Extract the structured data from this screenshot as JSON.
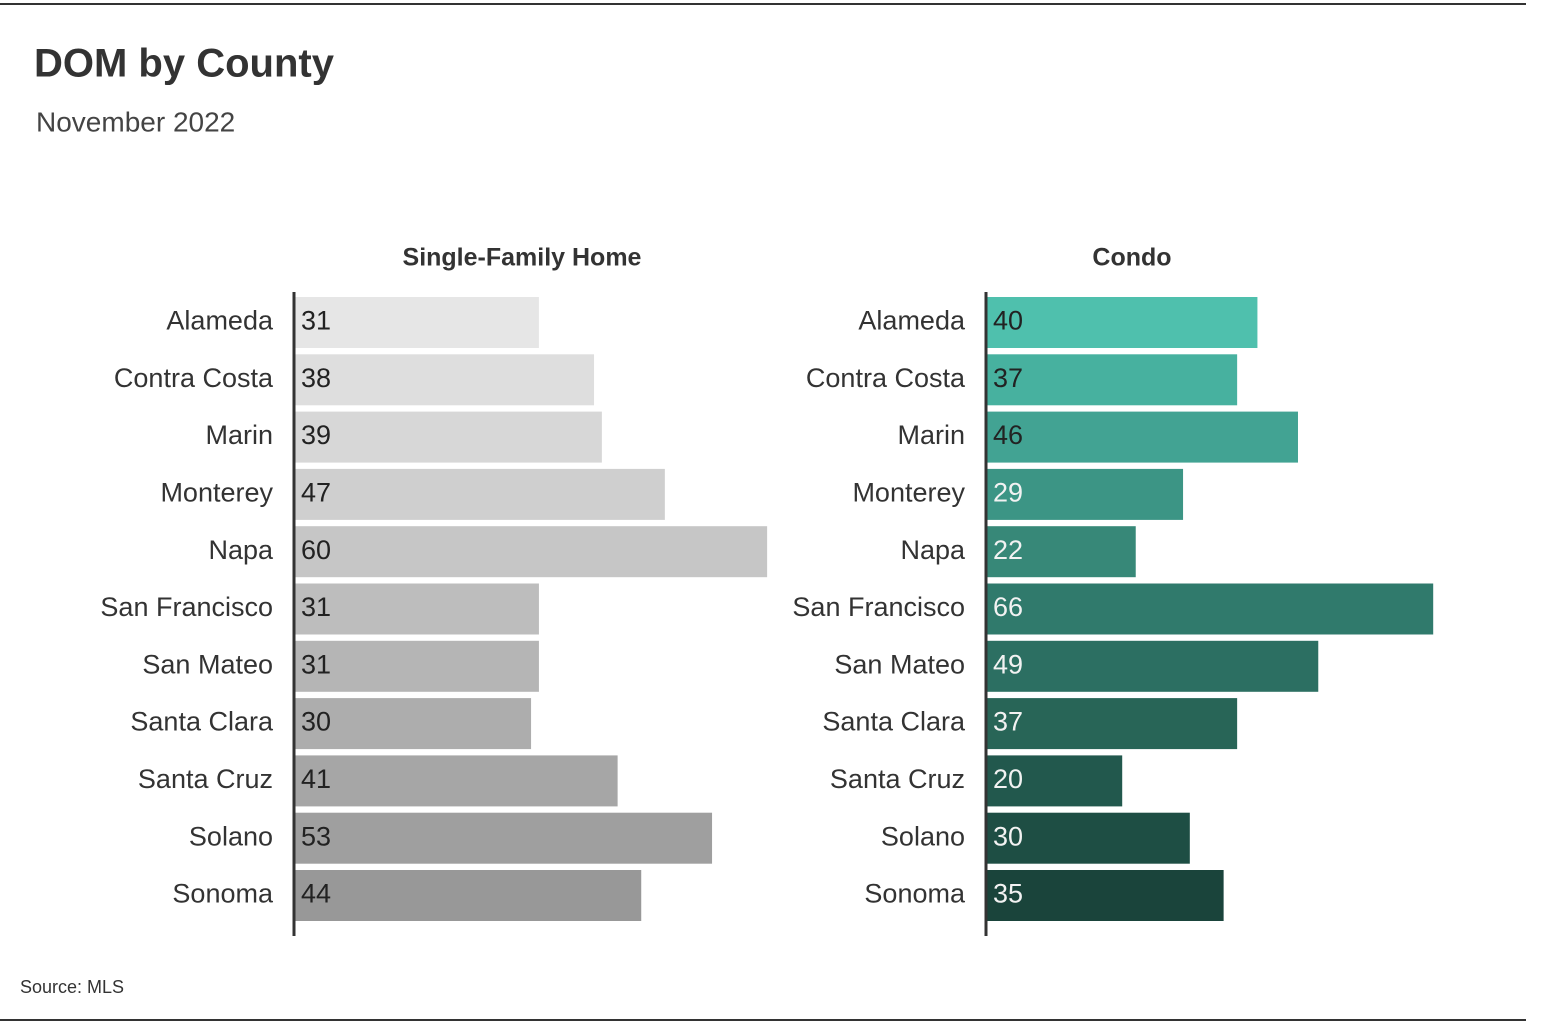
{
  "title": "DOM by County",
  "subtitle": "November 2022",
  "source": "Source:  MLS",
  "chart_data": [
    {
      "type": "bar",
      "orientation": "horizontal",
      "title": "Single-Family Home",
      "categories": [
        "Alameda",
        "Contra Costa",
        "Marin",
        "Monterey",
        "Napa",
        "San Francisco",
        "San Mateo",
        "Santa Clara",
        "Santa Cruz",
        "Solano",
        "Sonoma"
      ],
      "values": [
        31,
        38,
        39,
        47,
        60,
        31,
        31,
        30,
        41,
        53,
        44
      ],
      "colors": [
        "#e6e6e6",
        "#dedede",
        "#d7d7d7",
        "#cfcfcf",
        "#c6c6c6",
        "#bdbdbd",
        "#b5b5b5",
        "#adadad",
        "#a6a6a6",
        "#9f9f9f",
        "#989898"
      ],
      "xlim": [
        0,
        61
      ]
    },
    {
      "type": "bar",
      "orientation": "horizontal",
      "title": "Condo",
      "categories": [
        "Alameda",
        "Contra Costa",
        "Marin",
        "Monterey",
        "Napa",
        "San Francisco",
        "San Mateo",
        "Santa Clara",
        "Santa Cruz",
        "Solano",
        "Sonoma"
      ],
      "values": [
        40,
        37,
        46,
        29,
        22,
        66,
        49,
        37,
        20,
        30,
        35
      ],
      "colors": [
        "#4fc0ad",
        "#47b19f",
        "#42a393",
        "#3c9585",
        "#378878",
        "#307a6c",
        "#2c6f62",
        "#286557",
        "#22584d",
        "#1e4e44",
        "#1a443b"
      ],
      "xlim": [
        0,
        71
      ]
    }
  ]
}
